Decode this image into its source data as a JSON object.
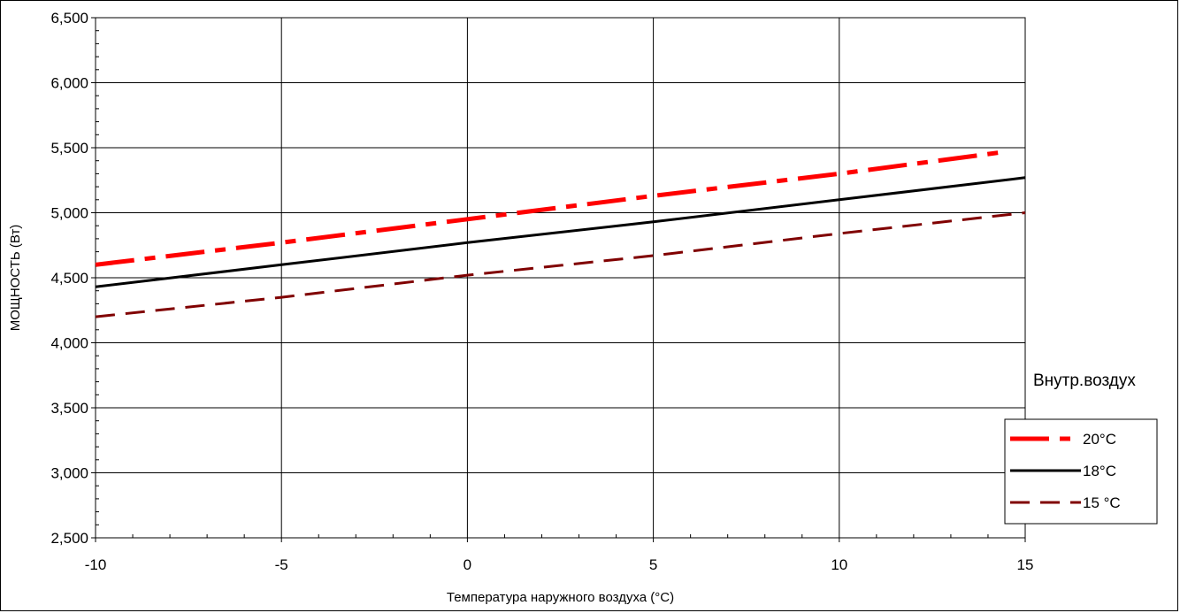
{
  "chart_data": {
    "type": "line",
    "title": "",
    "xlabel": "Температура наружного воздуха (°С)",
    "ylabel": "МОЩНОСТЬ (Вт)",
    "xlim": [
      -10,
      15
    ],
    "ylim": [
      2500,
      6500
    ],
    "x_ticks": [
      "-10",
      "-5",
      "0",
      "5",
      "10",
      "15"
    ],
    "y_ticks": [
      "6,500",
      "6,000",
      "5,500",
      "5,000",
      "4,500",
      "4,000",
      "3,500",
      "3,000",
      "2,500"
    ],
    "grid": true,
    "legend_title": "Внутр.воздух",
    "legend_position": "right",
    "series": [
      {
        "name": "20°C",
        "color": "#ff0000",
        "style": "dash-dot-thick",
        "x": [
          -10,
          -5,
          0,
          5,
          10,
          14.5
        ],
        "y": [
          4600,
          4770,
          4950,
          5130,
          5300,
          5470
        ]
      },
      {
        "name": "18°C",
        "color": "#000000",
        "style": "solid",
        "x": [
          -10,
          -5,
          0,
          5,
          10,
          15
        ],
        "y": [
          4430,
          4600,
          4770,
          4930,
          5100,
          5270
        ]
      },
      {
        "name": "15 °C",
        "color": "#800000",
        "style": "dashed",
        "x": [
          -10,
          -5,
          0,
          5,
          10,
          15
        ],
        "y": [
          4200,
          4350,
          4520,
          4670,
          4840,
          5000
        ]
      }
    ]
  }
}
